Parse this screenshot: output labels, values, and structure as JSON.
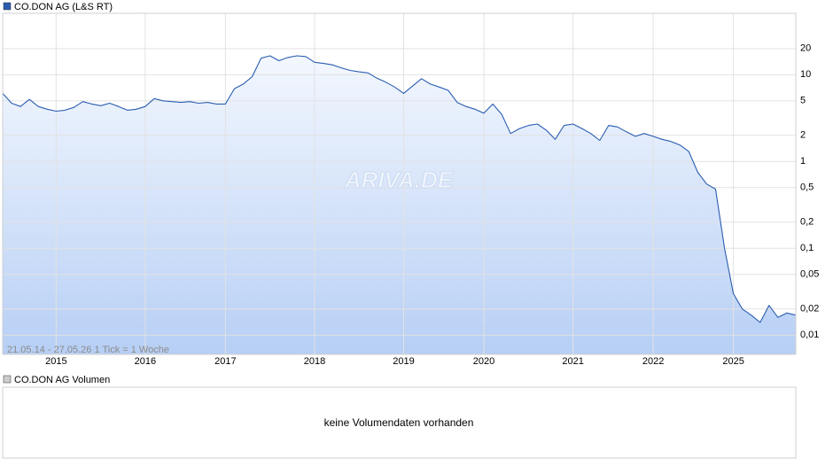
{
  "chart_data": {
    "type": "line",
    "title": "CO.DON AG (L&S RT)",
    "range_note": "21.05.14 - 27.05.26   1 Tick = 1 Woche",
    "watermark": "ARIVA.DE",
    "log_y": true,
    "grid": true,
    "categories": [
      null,
      null,
      null,
      null,
      null,
      null,
      "2015",
      null,
      null,
      null,
      null,
      null,
      null,
      null,
      null,
      null,
      "2016",
      null,
      null,
      null,
      null,
      null,
      null,
      null,
      null,
      "2017",
      null,
      null,
      null,
      null,
      null,
      null,
      null,
      null,
      null,
      "2018",
      null,
      null,
      null,
      null,
      null,
      null,
      null,
      null,
      null,
      "2019",
      null,
      null,
      null,
      null,
      null,
      null,
      null,
      null,
      "2020",
      null,
      null,
      null,
      null,
      null,
      null,
      null,
      null,
      null,
      "2021",
      null,
      null,
      null,
      null,
      null,
      null,
      null,
      null,
      "2022",
      null,
      null,
      null,
      null,
      null,
      null,
      null,
      null,
      "2025",
      null,
      null,
      null,
      null,
      null,
      null,
      null
    ],
    "series": [
      {
        "name": "CO.DON AG (L&S RT)",
        "color": "#2a5db0",
        "values": [
          6.1,
          4.7,
          4.3,
          5.2,
          4.3,
          4.0,
          3.8,
          3.9,
          4.2,
          4.9,
          4.6,
          4.4,
          4.7,
          4.3,
          3.9,
          4.0,
          4.3,
          5.3,
          5.0,
          4.9,
          4.8,
          4.9,
          4.7,
          4.8,
          4.6,
          4.6,
          6.9,
          7.8,
          9.5,
          15.5,
          16.5,
          14.5,
          15.8,
          16.5,
          16.2,
          13.9,
          13.5,
          13.0,
          12.0,
          11.2,
          10.8,
          10.5,
          9.1,
          8.2,
          7.2,
          6.1,
          7.4,
          9.0,
          7.8,
          7.2,
          6.6,
          4.8,
          4.3,
          4.0,
          3.6,
          4.6,
          3.5,
          2.1,
          2.4,
          2.6,
          2.7,
          2.3,
          1.8,
          2.6,
          2.7,
          2.4,
          2.1,
          1.75,
          2.6,
          2.5,
          2.2,
          1.95,
          2.1,
          1.95,
          1.8,
          1.7,
          1.55,
          1.3,
          0.75,
          0.55,
          0.48,
          0.1,
          0.03,
          0.02,
          0.017,
          0.014,
          0.022,
          0.016,
          0.018,
          0.017
        ]
      }
    ],
    "ylim": [
      0.006,
      51
    ],
    "yticks": [
      {
        "value": 0.01,
        "label": "0,01"
      },
      {
        "value": 0.02,
        "label": "0,02"
      },
      {
        "value": 0.05,
        "label": "0,05"
      },
      {
        "value": 0.1,
        "label": "0,1"
      },
      {
        "value": 0.2,
        "label": "0,2"
      },
      {
        "value": 0.5,
        "label": "0,5"
      },
      1,
      2,
      5,
      10,
      20
    ]
  },
  "volume_panel": {
    "title": "CO.DON AG Volumen",
    "message": "keine Volumendaten vorhanden"
  }
}
